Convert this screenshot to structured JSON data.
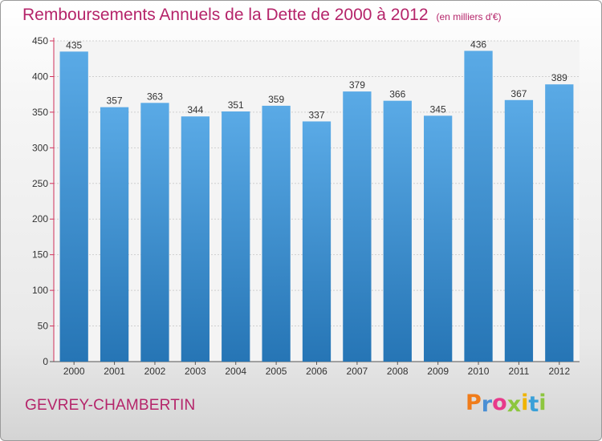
{
  "chart_data": {
    "type": "bar",
    "title": "Remboursements Annuels de la Dette de 2000 à 2012",
    "unit_note": "(en milliers d'€)",
    "categories": [
      "2000",
      "2001",
      "2002",
      "2003",
      "2004",
      "2005",
      "2006",
      "2007",
      "2008",
      "2009",
      "2010",
      "2011",
      "2012"
    ],
    "values": [
      435,
      357,
      363,
      344,
      351,
      359,
      337,
      379,
      366,
      345,
      436,
      367,
      389
    ],
    "ylim": [
      0,
      450
    ],
    "yticks": [
      0,
      50,
      100,
      150,
      200,
      250,
      300,
      350,
      400,
      450
    ],
    "grid": true,
    "bar_color_top": "#5aaae6",
    "bar_color_bottom": "#2675b5",
    "xlabel": "",
    "ylabel": ""
  },
  "footer": {
    "commune": "GEVREY-CHAMBERTIN",
    "logo_letters": [
      "P",
      "r",
      "o",
      "x",
      "i",
      "t",
      "i"
    ],
    "logo_colors": [
      "#f07c1a",
      "#4a8fd4",
      "#e83a8a",
      "#8dc63f",
      "#f0b400",
      "#3aa0d8",
      "#8dc63f"
    ]
  },
  "colors": {
    "title": "#b5246a",
    "axis_red": "#d0305a"
  }
}
